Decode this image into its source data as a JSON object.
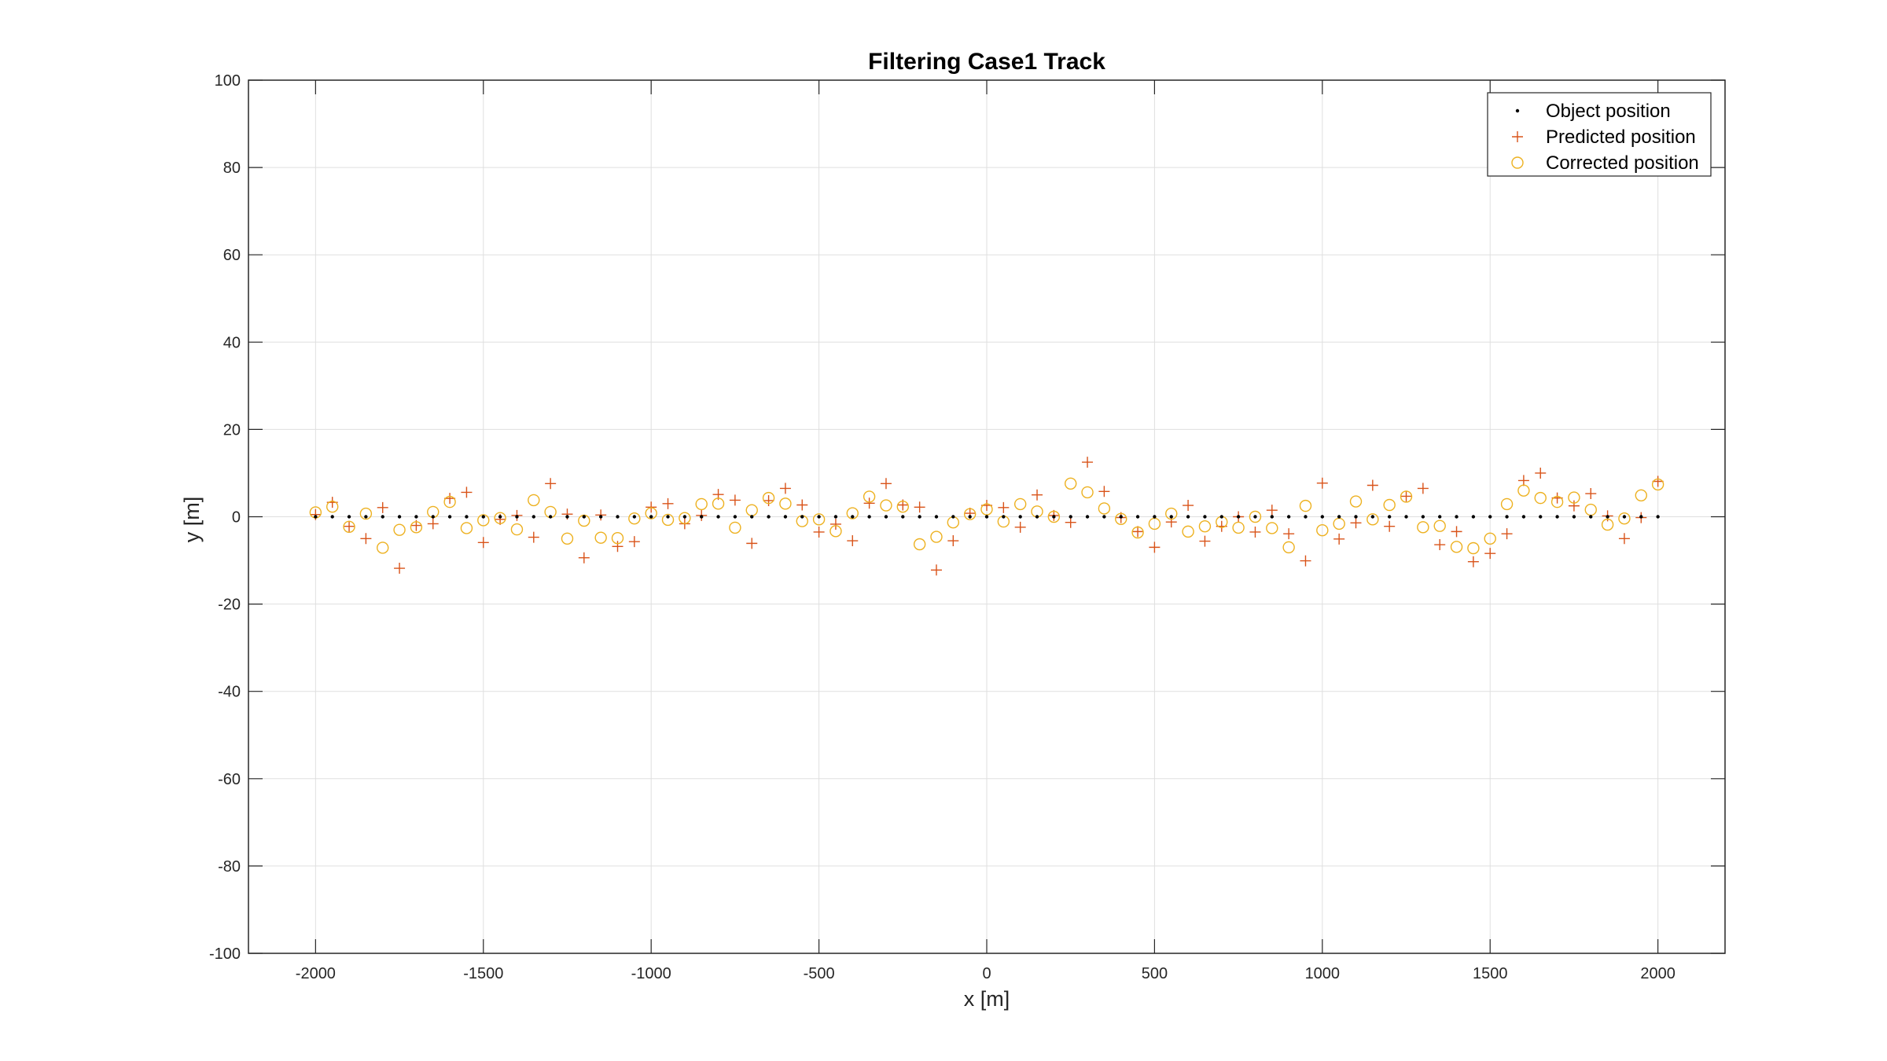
{
  "chart_data": {
    "type": "scatter",
    "title": "Filtering Case1 Track",
    "xlabel": "x [m]",
    "ylabel": "y [m]",
    "xlim": [
      -2200,
      2200
    ],
    "ylim": [
      -100,
      100
    ],
    "xticks": [
      -2000,
      -1500,
      -1000,
      -500,
      0,
      500,
      1000,
      1500,
      2000
    ],
    "yticks": [
      -100,
      -80,
      -60,
      -40,
      -20,
      0,
      20,
      40,
      60,
      80,
      100
    ],
    "grid": true,
    "legend_position": "top-right",
    "series": [
      {
        "name": "Object position",
        "marker": "dot",
        "color": "#000000",
        "x": [
          -2000,
          -1950,
          -1900,
          -1850,
          -1800,
          -1750,
          -1700,
          -1650,
          -1600,
          -1550,
          -1500,
          -1450,
          -1400,
          -1350,
          -1300,
          -1250,
          -1200,
          -1150,
          -1100,
          -1050,
          -1000,
          -950,
          -900,
          -850,
          -800,
          -750,
          -700,
          -650,
          -600,
          -550,
          -500,
          -450,
          -400,
          -350,
          -300,
          -250,
          -200,
          -150,
          -100,
          -50,
          0,
          50,
          100,
          150,
          200,
          250,
          300,
          350,
          400,
          450,
          500,
          550,
          600,
          650,
          700,
          750,
          800,
          850,
          900,
          950,
          1000,
          1050,
          1100,
          1150,
          1200,
          1250,
          1300,
          1350,
          1400,
          1450,
          1500,
          1550,
          1600,
          1650,
          1700,
          1750,
          1800,
          1850,
          1900,
          1950,
          2000
        ],
        "y": [
          0,
          0,
          0,
          0,
          0,
          0,
          0,
          0,
          0,
          0,
          0,
          0,
          0,
          0,
          0,
          0,
          0,
          0,
          0,
          0,
          0,
          0,
          0,
          0,
          0,
          0,
          0,
          0,
          0,
          0,
          0,
          0,
          0,
          0,
          0,
          0,
          0,
          0,
          0,
          0,
          0,
          0,
          0,
          0,
          0,
          0,
          0,
          0,
          0,
          0,
          0,
          0,
          0,
          0,
          0,
          0,
          0,
          0,
          0,
          0,
          0,
          0,
          0,
          0,
          0,
          0,
          0,
          0,
          0,
          0,
          0,
          0,
          0,
          0,
          0,
          0,
          0,
          0,
          0,
          0,
          0
        ]
      },
      {
        "name": "Predicted position",
        "marker": "plus",
        "color": "#D95319",
        "x": [
          -2000,
          -1950,
          -1900,
          -1850,
          -1800,
          -1750,
          -1700,
          -1650,
          -1600,
          -1550,
          -1500,
          -1450,
          -1400,
          -1350,
          -1300,
          -1250,
          -1200,
          -1150,
          -1100,
          -1050,
          -1000,
          -950,
          -900,
          -850,
          -800,
          -750,
          -700,
          -650,
          -600,
          -550,
          -500,
          -450,
          -400,
          -350,
          -300,
          -250,
          -200,
          -150,
          -100,
          -50,
          0,
          50,
          100,
          150,
          200,
          250,
          300,
          350,
          400,
          450,
          500,
          550,
          600,
          650,
          700,
          750,
          800,
          850,
          900,
          950,
          1000,
          1050,
          1100,
          1150,
          1200,
          1250,
          1300,
          1350,
          1400,
          1450,
          1500,
          1550,
          1600,
          1650,
          1700,
          1750,
          1800,
          1850,
          1900,
          1950,
          2000
        ],
        "y": [
          0.5,
          3.3,
          -2.2,
          -5.0,
          2.1,
          -11.8,
          -2.0,
          -1.6,
          4.2,
          5.6,
          -5.9,
          -0.6,
          0.3,
          -4.7,
          7.6,
          0.6,
          -9.4,
          0.4,
          -6.8,
          -5.7,
          2.2,
          3.0,
          -1.6,
          0.3,
          5.1,
          3.8,
          -6.1,
          3.7,
          6.5,
          2.7,
          -3.5,
          -1.7,
          -5.5,
          3.1,
          7.6,
          2.7,
          2.2,
          -12.2,
          -5.5,
          0.8,
          2.6,
          2.1,
          -2.4,
          5.0,
          0.3,
          -1.3,
          12.5,
          5.8,
          -0.2,
          -3.4,
          -7.0,
          -1.2,
          2.6,
          -5.6,
          -2.2,
          0.0,
          -3.5,
          1.5,
          -3.9,
          -10.1,
          7.7,
          -5.1,
          -1.4,
          7.2,
          -2.2,
          4.7,
          6.5,
          -6.4,
          -3.4,
          -10.3,
          -8.4,
          -3.9,
          8.3,
          10.0,
          4.3,
          2.5,
          5.3,
          0.2,
          -5.0,
          -0.2,
          8.1
        ]
      },
      {
        "name": "Corrected position",
        "marker": "circle",
        "color": "#EDB120",
        "x": [
          -2000,
          -1950,
          -1900,
          -1850,
          -1800,
          -1750,
          -1700,
          -1650,
          -1600,
          -1550,
          -1500,
          -1450,
          -1400,
          -1350,
          -1300,
          -1250,
          -1200,
          -1150,
          -1100,
          -1050,
          -1000,
          -950,
          -900,
          -850,
          -800,
          -750,
          -700,
          -650,
          -600,
          -550,
          -500,
          -450,
          -400,
          -350,
          -300,
          -250,
          -200,
          -150,
          -100,
          -50,
          0,
          50,
          100,
          150,
          200,
          250,
          300,
          350,
          400,
          450,
          500,
          550,
          600,
          650,
          700,
          750,
          800,
          850,
          900,
          950,
          1000,
          1050,
          1100,
          1150,
          1200,
          1250,
          1300,
          1350,
          1400,
          1450,
          1500,
          1550,
          1600,
          1650,
          1700,
          1750,
          1800,
          1850,
          1900,
          1950,
          2000
        ],
        "y": [
          1.0,
          2.3,
          -2.3,
          0.7,
          -7.1,
          -3.0,
          -2.4,
          1.1,
          3.4,
          -2.6,
          -0.8,
          -0.3,
          -2.9,
          3.8,
          1.1,
          -5.0,
          -0.9,
          -4.8,
          -4.9,
          -0.4,
          0.8,
          -0.7,
          -0.3,
          2.9,
          3.0,
          -2.5,
          1.5,
          4.3,
          3.0,
          -1.0,
          -0.6,
          -3.3,
          0.8,
          4.6,
          2.6,
          2.3,
          -6.3,
          -4.6,
          -1.3,
          0.6,
          1.7,
          -1.1,
          2.9,
          1.2,
          0.0,
          7.6,
          5.6,
          1.9,
          -0.5,
          -3.6,
          -1.6,
          0.7,
          -3.4,
          -2.2,
          -1.2,
          -2.5,
          0.0,
          -2.6,
          -7.0,
          2.5,
          -3.1,
          -1.6,
          3.5,
          -0.6,
          2.7,
          4.6,
          -2.4,
          -2.1,
          -6.9,
          -7.2,
          -5.0,
          2.9,
          6.0,
          4.3,
          3.4,
          4.4,
          1.6,
          -1.8,
          -0.4,
          4.9,
          7.4
        ]
      }
    ]
  }
}
